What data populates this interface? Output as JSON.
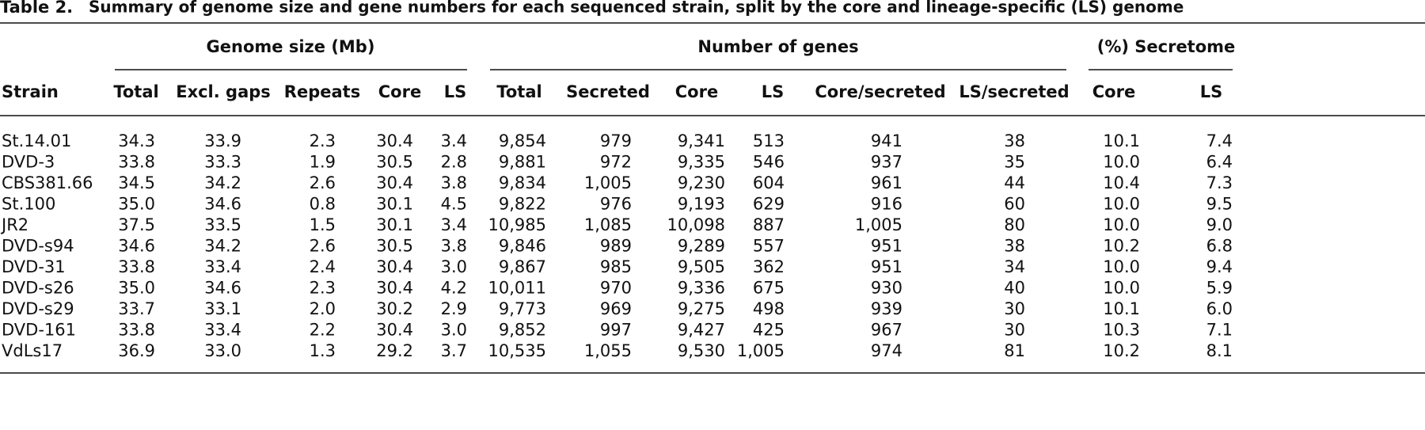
{
  "title": {
    "label": "Table 2.",
    "text": "Summary of genome size and gene numbers for each sequenced strain, split by the core and lineage-specific (LS) genome"
  },
  "table": {
    "groups": [
      "Genome size (Mb)",
      "Number of genes",
      "(%) Secretome"
    ],
    "columns": [
      "Strain",
      "Total",
      "Excl. gaps",
      "Repeats",
      "Core",
      "LS",
      "Total",
      "Secreted",
      "Core",
      "LS",
      "Core/secreted",
      "LS/secreted",
      "Core",
      "LS"
    ],
    "rows": [
      [
        "St.14.01",
        "34.3",
        "33.9",
        "2.3",
        "30.4",
        "3.4",
        "9,854",
        "979",
        "9,341",
        "513",
        "941",
        "38",
        "10.1",
        "7.4"
      ],
      [
        "DVD-3",
        "33.8",
        "33.3",
        "1.9",
        "30.5",
        "2.8",
        "9,881",
        "972",
        "9,335",
        "546",
        "937",
        "35",
        "10.0",
        "6.4"
      ],
      [
        "CBS381.66",
        "34.5",
        "34.2",
        "2.6",
        "30.4",
        "3.8",
        "9,834",
        "1,005",
        "9,230",
        "604",
        "961",
        "44",
        "10.4",
        "7.3"
      ],
      [
        "St.100",
        "35.0",
        "34.6",
        "0.8",
        "30.1",
        "4.5",
        "9,822",
        "976",
        "9,193",
        "629",
        "916",
        "60",
        "10.0",
        "9.5"
      ],
      [
        "JR2",
        "37.5",
        "33.5",
        "1.5",
        "30.1",
        "3.4",
        "10,985",
        "1,085",
        "10,098",
        "887",
        "1,005",
        "80",
        "10.0",
        "9.0"
      ],
      [
        "DVD-s94",
        "34.6",
        "34.2",
        "2.6",
        "30.5",
        "3.8",
        "9,846",
        "989",
        "9,289",
        "557",
        "951",
        "38",
        "10.2",
        "6.8"
      ],
      [
        "DVD-31",
        "33.8",
        "33.4",
        "2.4",
        "30.4",
        "3.0",
        "9,867",
        "985",
        "9,505",
        "362",
        "951",
        "34",
        "10.0",
        "9.4"
      ],
      [
        "DVD-s26",
        "35.0",
        "34.6",
        "2.3",
        "30.4",
        "4.2",
        "10,011",
        "970",
        "9,336",
        "675",
        "930",
        "40",
        "10.0",
        "5.9"
      ],
      [
        "DVD-s29",
        "33.7",
        "33.1",
        "2.0",
        "30.2",
        "2.9",
        "9,773",
        "969",
        "9,275",
        "498",
        "939",
        "30",
        "10.1",
        "6.0"
      ],
      [
        "DVD-161",
        "33.8",
        "33.4",
        "2.2",
        "30.4",
        "3.0",
        "9,852",
        "997",
        "9,427",
        "425",
        "967",
        "30",
        "10.3",
        "7.1"
      ],
      [
        "VdLs17",
        "36.9",
        "33.0",
        "1.3",
        "29.2",
        "3.7",
        "10,535",
        "1,055",
        "9,530",
        "1,005",
        "974",
        "81",
        "10.2",
        "8.1"
      ]
    ]
  }
}
